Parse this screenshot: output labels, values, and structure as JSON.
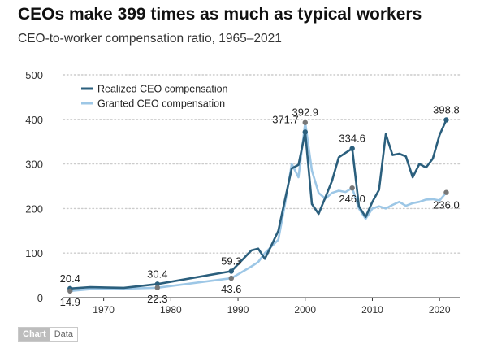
{
  "header": {
    "title": "CEOs make 399 times as much as typical workers",
    "subtitle": "CEO-to-worker compensation ratio, 1965–2021"
  },
  "toggle": {
    "chart_label": "Chart",
    "data_label": "Data"
  },
  "colors": {
    "realized": "#2b5f7d",
    "granted": "#9dc7e6",
    "marker_gray": "#777777",
    "grid": "#cccccc",
    "axis": "#333333"
  },
  "chart_data": {
    "type": "line",
    "title": "CEOs make 399 times as much as typical workers",
    "subtitle": "CEO-to-worker compensation ratio, 1965–2021",
    "xlabel": "",
    "ylabel": "",
    "xlim": [
      1964,
      2023
    ],
    "ylim": [
      0,
      500
    ],
    "x_ticks": [
      1970,
      1980,
      1990,
      2000,
      2010,
      2020
    ],
    "y_ticks": [
      0,
      100,
      200,
      300,
      400,
      500
    ],
    "grid": "horizontal dotted",
    "legend_position": "top-left",
    "series": [
      {
        "name": "Realized CEO compensation",
        "color": "#2b5f7d",
        "points": [
          [
            1965,
            20.4
          ],
          [
            1968,
            23.5
          ],
          [
            1973,
            22.0
          ],
          [
            1978,
            30.4
          ],
          [
            1989,
            59.3
          ],
          [
            1992,
            106
          ],
          [
            1993,
            110
          ],
          [
            1994,
            87
          ],
          [
            1995,
            118
          ],
          [
            1996,
            150
          ],
          [
            1997,
            220
          ],
          [
            1998,
            290
          ],
          [
            1999,
            298
          ],
          [
            2000,
            371.7
          ],
          [
            2001,
            210
          ],
          [
            2002,
            188
          ],
          [
            2003,
            225
          ],
          [
            2004,
            262
          ],
          [
            2005,
            315
          ],
          [
            2006,
            325
          ],
          [
            2007,
            334.6
          ],
          [
            2008,
            205
          ],
          [
            2009,
            181
          ],
          [
            2010,
            215
          ],
          [
            2011,
            242
          ],
          [
            2012,
            367
          ],
          [
            2013,
            320
          ],
          [
            2014,
            323
          ],
          [
            2015,
            317
          ],
          [
            2016,
            270
          ],
          [
            2017,
            300
          ],
          [
            2018,
            292
          ],
          [
            2019,
            312
          ],
          [
            2020,
            365
          ],
          [
            2021,
            398.8
          ]
        ]
      },
      {
        "name": "Granted CEO compensation",
        "color": "#9dc7e6",
        "points": [
          [
            1965,
            14.9
          ],
          [
            1968,
            19.0
          ],
          [
            1973,
            20.0
          ],
          [
            1978,
            22.3
          ],
          [
            1989,
            43.6
          ],
          [
            1992,
            70
          ],
          [
            1993,
            80
          ],
          [
            1994,
            100
          ],
          [
            1995,
            115
          ],
          [
            1996,
            130
          ],
          [
            1997,
            210
          ],
          [
            1998,
            300
          ],
          [
            1999,
            270
          ],
          [
            2000,
            392.9
          ],
          [
            2001,
            285
          ],
          [
            2002,
            235
          ],
          [
            2003,
            222
          ],
          [
            2004,
            235
          ],
          [
            2005,
            240
          ],
          [
            2006,
            237
          ],
          [
            2007,
            246.0
          ],
          [
            2008,
            200
          ],
          [
            2009,
            177
          ],
          [
            2010,
            200
          ],
          [
            2011,
            205
          ],
          [
            2012,
            200
          ],
          [
            2013,
            208
          ],
          [
            2014,
            215
          ],
          [
            2015,
            206
          ],
          [
            2016,
            212
          ],
          [
            2017,
            215
          ],
          [
            2018,
            220
          ],
          [
            2019,
            221
          ],
          [
            2020,
            218
          ],
          [
            2021,
            236.0
          ]
        ]
      }
    ],
    "annotations": [
      {
        "label": "20.4",
        "x": 1965,
        "y": 20.4,
        "series": 0,
        "place": "above"
      },
      {
        "label": "14.9",
        "x": 1965,
        "y": 14.9,
        "series": 1,
        "place": "below"
      },
      {
        "label": "30.4",
        "x": 1978,
        "y": 30.4,
        "series": 0,
        "place": "above"
      },
      {
        "label": "22.3",
        "x": 1978,
        "y": 22.3,
        "series": 1,
        "place": "below"
      },
      {
        "label": "59.3",
        "x": 1989,
        "y": 59.3,
        "series": 0,
        "place": "above"
      },
      {
        "label": "43.6",
        "x": 1989,
        "y": 43.6,
        "series": 1,
        "place": "below"
      },
      {
        "label": "392.9",
        "x": 2000,
        "y": 392.9,
        "series": 1,
        "place": "above"
      },
      {
        "label": "371.7",
        "x": 2000,
        "y": 371.7,
        "series": 0,
        "place": "left"
      },
      {
        "label": "334.6",
        "x": 2007,
        "y": 334.6,
        "series": 0,
        "place": "above"
      },
      {
        "label": "246.0",
        "x": 2007,
        "y": 246.0,
        "series": 1,
        "place": "below"
      },
      {
        "label": "398.8",
        "x": 2021,
        "y": 398.8,
        "series": 0,
        "place": "above"
      },
      {
        "label": "236.0",
        "x": 2021,
        "y": 236.0,
        "series": 1,
        "place": "below"
      }
    ]
  }
}
